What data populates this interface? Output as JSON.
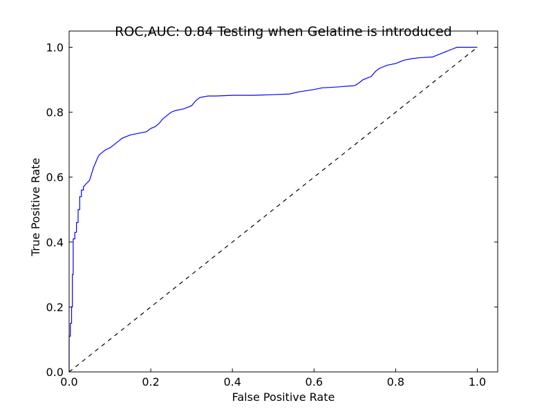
{
  "chart_data": {
    "type": "line",
    "title": "ROC,AUC: 0.84 Testing when Gelatine is introduced",
    "xlabel": "False Positive Rate",
    "ylabel": "True Positive Rate",
    "xlim": [
      0,
      1.05
    ],
    "ylim": [
      0,
      1.05
    ],
    "xticks": [
      0.0,
      0.2,
      0.4,
      0.6,
      0.8,
      1.0
    ],
    "yticks": [
      0.0,
      0.2,
      0.4,
      0.6,
      0.8,
      1.0
    ],
    "xtick_labels": [
      "0.0",
      "0.2",
      "0.4",
      "0.6",
      "0.8",
      "1.0"
    ],
    "ytick_labels": [
      "0.0",
      "0.2",
      "0.4",
      "0.6",
      "0.8",
      "1.0"
    ],
    "grid": false,
    "series": [
      {
        "style": "solid",
        "color": "#0000ff",
        "x": [
          0.0,
          0.0,
          0.003,
          0.003,
          0.006,
          0.006,
          0.008,
          0.008,
          0.01,
          0.01,
          0.014,
          0.014,
          0.018,
          0.018,
          0.022,
          0.022,
          0.026,
          0.026,
          0.03,
          0.03,
          0.035,
          0.035,
          0.042,
          0.046,
          0.05,
          0.055,
          0.06,
          0.065,
          0.07,
          0.072,
          0.075,
          0.08,
          0.085,
          0.09,
          0.1,
          0.11,
          0.12,
          0.13,
          0.15,
          0.17,
          0.19,
          0.2,
          0.21,
          0.22,
          0.23,
          0.24,
          0.25,
          0.26,
          0.28,
          0.3,
          0.31,
          0.32,
          0.34,
          0.36,
          0.4,
          0.45,
          0.5,
          0.54,
          0.56,
          0.6,
          0.62,
          0.66,
          0.7,
          0.71,
          0.72,
          0.74,
          0.75,
          0.76,
          0.78,
          0.8,
          0.81,
          0.82,
          0.84,
          0.86,
          0.89,
          0.9,
          0.92,
          0.94,
          0.95,
          1.0
        ],
        "y": [
          0.0,
          0.11,
          0.11,
          0.15,
          0.15,
          0.2,
          0.2,
          0.3,
          0.3,
          0.41,
          0.41,
          0.43,
          0.43,
          0.46,
          0.46,
          0.5,
          0.5,
          0.54,
          0.54,
          0.56,
          0.56,
          0.57,
          0.58,
          0.585,
          0.59,
          0.61,
          0.63,
          0.645,
          0.66,
          0.665,
          0.67,
          0.675,
          0.68,
          0.685,
          0.69,
          0.7,
          0.71,
          0.72,
          0.73,
          0.735,
          0.74,
          0.75,
          0.755,
          0.765,
          0.78,
          0.79,
          0.8,
          0.805,
          0.81,
          0.82,
          0.835,
          0.845,
          0.85,
          0.85,
          0.852,
          0.852,
          0.854,
          0.856,
          0.862,
          0.87,
          0.875,
          0.878,
          0.882,
          0.89,
          0.9,
          0.91,
          0.925,
          0.935,
          0.945,
          0.95,
          0.955,
          0.96,
          0.965,
          0.968,
          0.97,
          0.975,
          0.985,
          0.995,
          1.0,
          1.0
        ]
      },
      {
        "style": "dashed",
        "color": "#000000",
        "x": [
          0.0,
          1.0
        ],
        "y": [
          0.0,
          1.0
        ]
      }
    ]
  }
}
